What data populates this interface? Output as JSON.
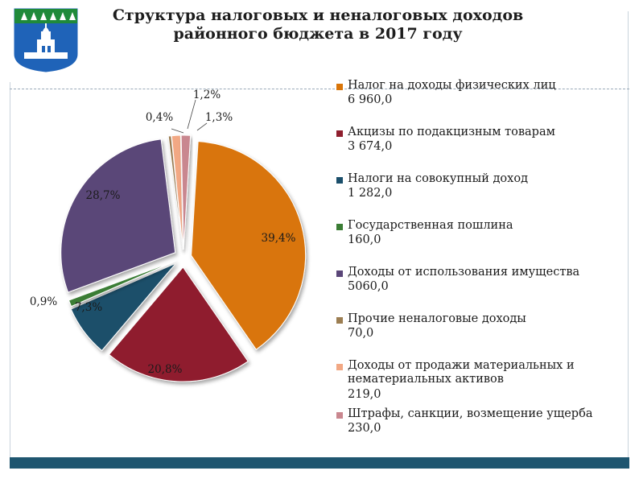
{
  "title_line1": "Структура налоговых и неналоговых доходов",
  "title_line2": "районного бюджета в 2017 году",
  "colors": {
    "frame": "#c9d3dc",
    "footer": "#1f5670",
    "logo_green": "#1f8a3a",
    "logo_blue": "#1f63b8"
  },
  "chart_data": {
    "type": "pie",
    "exploded": true,
    "legend_position": "right",
    "slices": [
      {
        "name": "Налог на доходы физических лиц",
        "value": "6 960,0",
        "amount": 6960.0,
        "pct": "39,4%",
        "color": "#d97509"
      },
      {
        "name": "Акцизы по подакцизным товарам",
        "value": "3 674,0",
        "amount": 3674.0,
        "pct": "20,8%",
        "color": "#8f1f2e"
      },
      {
        "name": "Налоги на совокупный доход",
        "value": "1 282,0",
        "amount": 1282.0,
        "pct": "7,3%",
        "color": "#1b4f6b"
      },
      {
        "name": "Государственная пошлина",
        "value": "160,0",
        "amount": 160.0,
        "pct": "0,9%",
        "color": "#3b7d35"
      },
      {
        "name": "Доходы от использования имущества",
        "value": "5060,0",
        "amount": 5060.0,
        "pct": "28,7%",
        "color": "#5a4678"
      },
      {
        "name": "Прочие неналоговые доходы",
        "value": "70,0",
        "amount": 70.0,
        "pct": "0,4%",
        "color": "#9c7e52"
      },
      {
        "name": "Доходы от продажи материальных и нематериальных активов",
        "value": "219,0",
        "amount": 219.0,
        "pct": "1,2%",
        "color": "#f2a884"
      },
      {
        "name": "Штрафы, санкции, возмещение ущерба",
        "value": "230,0",
        "amount": 230.0,
        "pct": "1,3%",
        "color": "#c9878f"
      }
    ]
  }
}
